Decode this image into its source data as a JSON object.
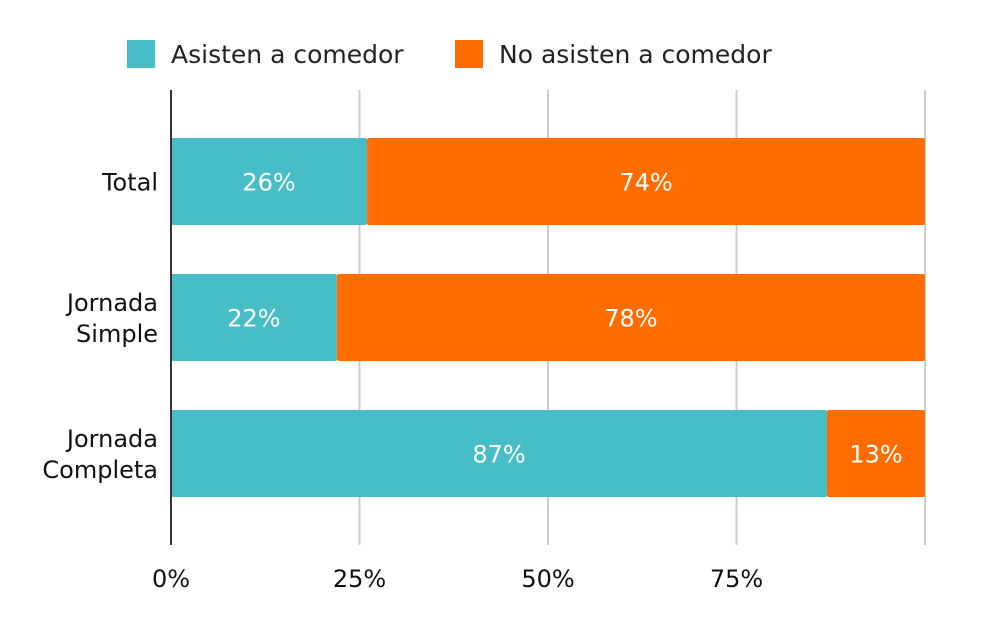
{
  "chart_data": {
    "type": "bar",
    "orientation": "horizontal",
    "stacked": true,
    "categories": [
      [
        "Total"
      ],
      [
        "Jornada",
        "Simple"
      ],
      [
        "Jornada",
        "Completa"
      ]
    ],
    "series": [
      {
        "name": "Asisten a comedor",
        "values": [
          26,
          22,
          87
        ],
        "labels": [
          "26%",
          "22%",
          "87%"
        ],
        "color": "#47BEC5"
      },
      {
        "name": "No asisten a comedor",
        "values": [
          74,
          78,
          13
        ],
        "labels": [
          "74%",
          "78%",
          "13%"
        ],
        "color": "#FF6D00"
      }
    ],
    "xlim": [
      0,
      100
    ],
    "ticks": [
      0,
      25,
      50,
      75,
      100
    ],
    "tick_labels": [
      "0%",
      "25%",
      "50%",
      "75%",
      ""
    ],
    "grid": true,
    "legend_position": "top",
    "title": "",
    "xlabel": "",
    "ylabel": ""
  }
}
